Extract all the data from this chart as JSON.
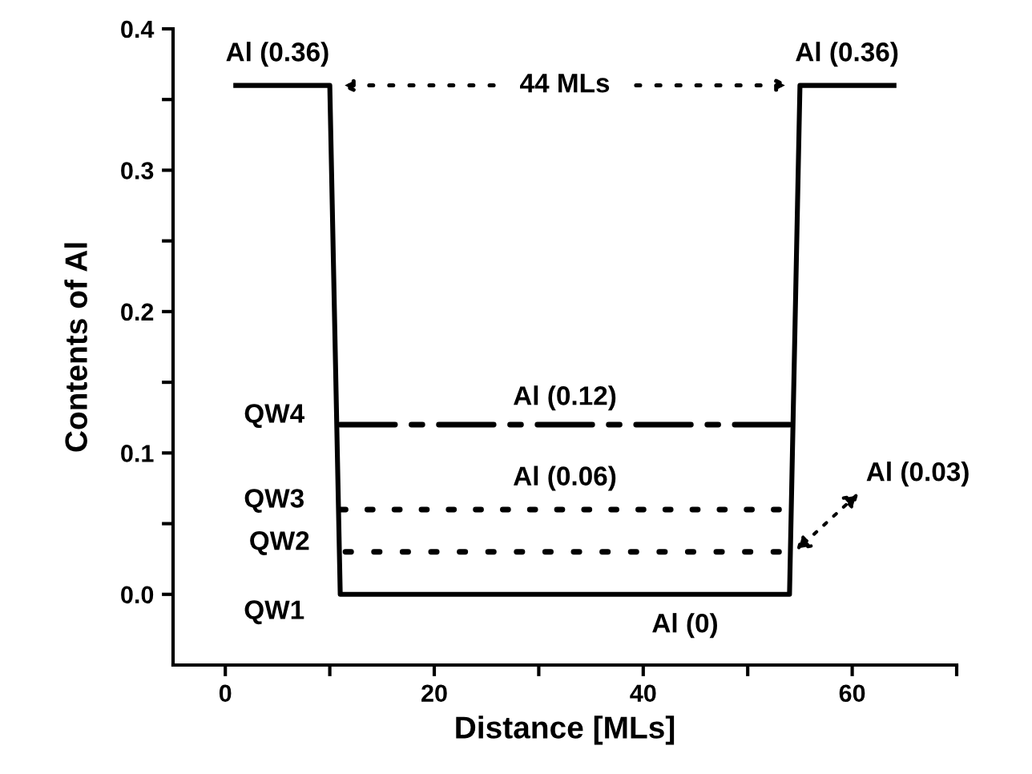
{
  "chart_data": {
    "type": "line",
    "xlabel": "Distance [MLs]",
    "ylabel": "Contents of Al",
    "xlim": [
      -5,
      70
    ],
    "ylim": [
      -0.05,
      0.4
    ],
    "xticks": [
      0,
      {
        "value": 10,
        "label": null
      },
      20,
      {
        "value": 30,
        "label": null
      },
      40,
      {
        "value": 50,
        "label": null
      },
      60,
      {
        "value": 70,
        "label": null
      }
    ],
    "yticks": [
      {
        "value": 0,
        "label": "0.0"
      },
      {
        "value": 0.05,
        "label": null
      },
      0.1,
      {
        "value": 0.15,
        "label": null
      },
      0.2,
      {
        "value": 0.25,
        "label": null
      },
      0.3,
      {
        "value": 0.35,
        "label": null
      },
      0.4
    ],
    "grid": false,
    "marker": "none",
    "series": [
      {
        "name": "QW1",
        "color": "#000000",
        "line_style": "solid",
        "x": [
          1,
          10,
          11,
          54,
          55,
          64
        ],
        "values": [
          0.36,
          0.36,
          0,
          0,
          0.36,
          0.36
        ]
      },
      {
        "name": "QW2",
        "color": "#000000",
        "line_style": "dotted",
        "x": [
          11.5,
          53
        ],
        "values": [
          0.03,
          0.03
        ]
      },
      {
        "name": "QW3",
        "color": "#000000",
        "line_style": "dotted",
        "x": [
          11,
          53
        ],
        "values": [
          0.06,
          0.06
        ]
      },
      {
        "name": "QW4",
        "color": "#000000",
        "line_style": "dashdot",
        "x": [
          11,
          54
        ],
        "values": [
          0.12,
          0.12
        ]
      }
    ],
    "annotations": [
      {
        "text": "Al (0.36)",
        "x": 5,
        "y": 0.36
      },
      {
        "text": "Al (0.36)",
        "x": 59.5,
        "y": 0.36
      },
      "44 MLs",
      {
        "text": "Al (0.12)",
        "x": 32.5,
        "y": 0.12
      },
      {
        "text": "Al (0.06)",
        "x": 32.5,
        "y": 0.06
      },
      {
        "text": "Al (0.03)",
        "x": 54.5,
        "y": 0.03
      },
      {
        "text": "Al (0)",
        "x": 44,
        "y": 0
      }
    ]
  }
}
